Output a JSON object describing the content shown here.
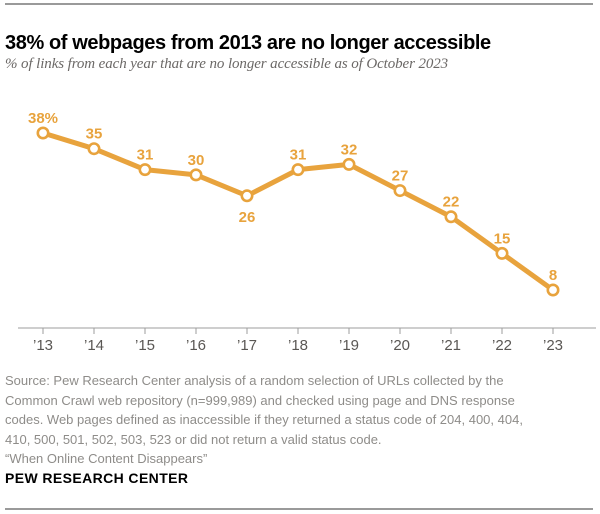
{
  "chart_data": {
    "type": "line",
    "title": "38% of webpages from 2013 are no longer accessible",
    "subtitle": "% of links from each year that are no longer accessible as of October 2023",
    "categories": [
      "’13",
      "’14",
      "’15",
      "’16",
      "’17",
      "’18",
      "’19",
      "’20",
      "’21",
      "’22",
      "’23"
    ],
    "values": [
      38,
      35,
      31,
      30,
      26,
      31,
      32,
      27,
      22,
      15,
      8
    ],
    "point_labels": [
      "38%",
      "35",
      "31",
      "30",
      "26",
      "31",
      "32",
      "27",
      "22",
      "15",
      "8"
    ],
    "labels_below_indices": [
      4
    ],
    "series_name": "% of links no longer accessible",
    "xlabel": "",
    "ylabel": "",
    "ylim": [
      0,
      45
    ],
    "grid": false,
    "legend": false,
    "marker_style": "open-circle",
    "line_color": "#E8A33D"
  },
  "colors": {
    "accent_orange": "#E8A33D",
    "axis_gray": "#9d9d9d",
    "tick_label_gray": "#5a5754",
    "subtitle_gray": "#6b6866",
    "footer_gray": "#8e8c89",
    "rule_gray": "#9a9a9a",
    "title_black": "#000000"
  },
  "footer": {
    "source_lines": [
      "Source: Pew Research Center analysis of a random selection of URLs collected by the",
      "Common Crawl web repository (n=999,989) and checked using page and DNS response",
      "codes. Web pages defined as inaccessible if they returned a status code of 204, 400, 404,",
      "410, 500, 501, 502, 503, 523 or did not return a valid status code."
    ],
    "note": "“When Online Content Disappears”",
    "brand": "PEW RESEARCH CENTER"
  }
}
